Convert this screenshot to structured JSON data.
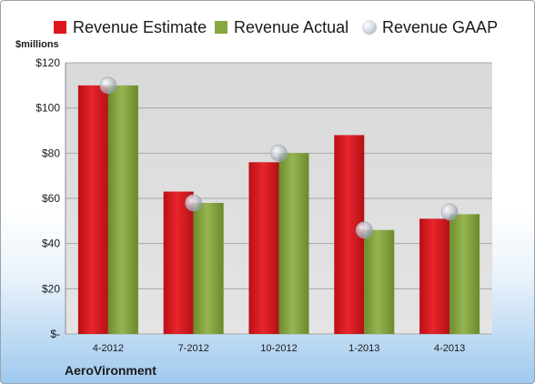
{
  "legend": [
    {
      "label": "Revenue Estimate",
      "color": "#e0161e",
      "kind": "bar"
    },
    {
      "label": "Revenue Actual",
      "color": "#86a83f",
      "kind": "bar"
    },
    {
      "label": "Revenue GAAP",
      "kind": "dot"
    }
  ],
  "unit_label": "$millions",
  "company": "AeroVironment",
  "chart_data": {
    "type": "bar",
    "categories": [
      "4-2012",
      "7-2012",
      "10-2012",
      "1-2013",
      "4-2013"
    ],
    "series": [
      {
        "name": "Revenue Estimate",
        "values": [
          110,
          63,
          76,
          88,
          51
        ],
        "color": "#d4151c"
      },
      {
        "name": "Revenue Actual",
        "values": [
          110,
          58,
          80,
          46,
          53
        ],
        "color": "#7f9e3a"
      },
      {
        "name": "Revenue GAAP",
        "values": [
          110,
          58,
          80,
          46,
          54
        ],
        "style": "point"
      }
    ],
    "ylim": [
      0,
      120
    ],
    "yticks": [
      0,
      20,
      40,
      60,
      80,
      100,
      120
    ],
    "ytick_labels": [
      "$-",
      "$20",
      "$40",
      "$60",
      "$80",
      "$100",
      "$120"
    ],
    "grid": true
  }
}
